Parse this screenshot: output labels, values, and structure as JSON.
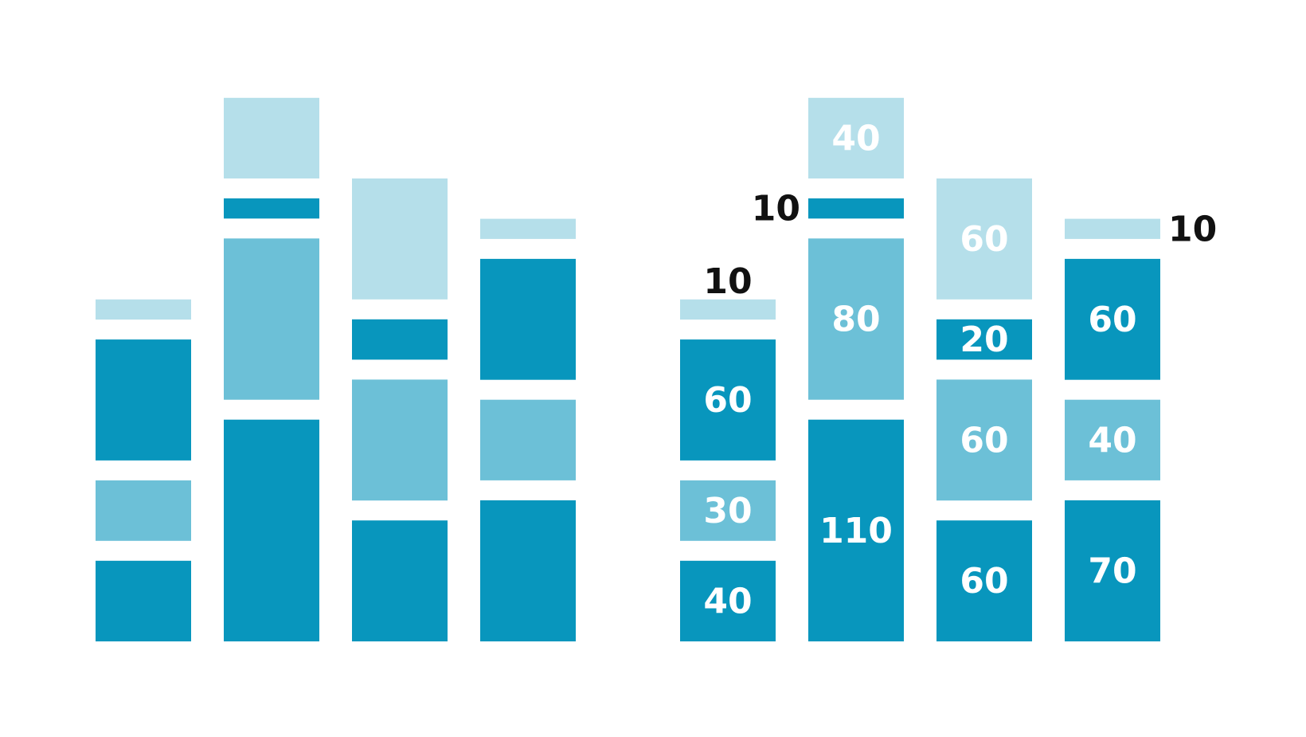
{
  "chart_data": [
    {
      "type": "bar",
      "stacked": true,
      "categories": [
        "",
        "",
        "",
        ""
      ],
      "stacks": [
        [
          40,
          30,
          60,
          10
        ],
        [
          110,
          80,
          10,
          40
        ],
        [
          60,
          60,
          20,
          60
        ],
        [
          70,
          40,
          60,
          10
        ]
      ],
      "segment_colors": [
        [
          "#0896bd",
          "#6cc0d7",
          "#0896bd",
          "#b5dfea"
        ],
        [
          "#0896bd",
          "#6cc0d7",
          "#0896bd",
          "#b5dfea"
        ],
        [
          "#0896bd",
          "#6cc0d7",
          "#0896bd",
          "#b5dfea"
        ],
        [
          "#0896bd",
          "#6cc0d7",
          "#0896bd",
          "#b5dfea"
        ]
      ],
      "show_labels": false,
      "grid": false,
      "legend": "none"
    },
    {
      "type": "bar",
      "stacked": true,
      "categories": [
        "",
        "",
        "",
        ""
      ],
      "stacks": [
        [
          40,
          30,
          60,
          10
        ],
        [
          110,
          80,
          10,
          40
        ],
        [
          60,
          60,
          20,
          60
        ],
        [
          70,
          40,
          60,
          10
        ]
      ],
      "segment_colors": [
        [
          "#0896bd",
          "#6cc0d7",
          "#0896bd",
          "#b5dfea"
        ],
        [
          "#0896bd",
          "#6cc0d7",
          "#0896bd",
          "#b5dfea"
        ],
        [
          "#0896bd",
          "#6cc0d7",
          "#0896bd",
          "#b5dfea"
        ],
        [
          "#0896bd",
          "#6cc0d7",
          "#0896bd",
          "#b5dfea"
        ]
      ],
      "show_labels": true,
      "label_color_inside": "#ffffff",
      "label_color_outside": "#111111",
      "grid": false,
      "legend": "none"
    }
  ]
}
